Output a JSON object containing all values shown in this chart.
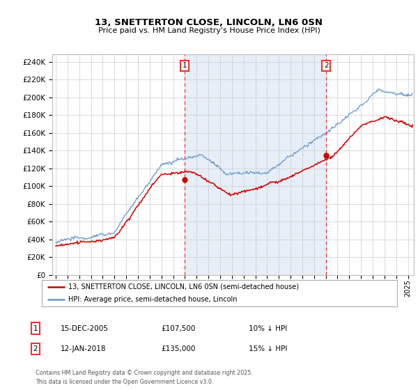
{
  "title1": "13, SNETTERTON CLOSE, LINCOLN, LN6 0SN",
  "title2": "Price paid vs. HM Land Registry's House Price Index (HPI)",
  "ylabel_ticks": [
    "£0",
    "£20K",
    "£40K",
    "£60K",
    "£80K",
    "£100K",
    "£120K",
    "£140K",
    "£160K",
    "£180K",
    "£200K",
    "£220K",
    "£240K"
  ],
  "ytick_values": [
    0,
    20000,
    40000,
    60000,
    80000,
    100000,
    120000,
    140000,
    160000,
    180000,
    200000,
    220000,
    240000
  ],
  "ylim": [
    0,
    248000
  ],
  "xlim_start": 1994.7,
  "xlim_end": 2025.5,
  "hpi_color": "#6699cc",
  "hpi_fill_color": "#dce8f5",
  "price_color": "#cc0000",
  "vline_color": "#ee3333",
  "vline1_x": 2005.96,
  "vline2_x": 2018.04,
  "marker1_x": 2005.96,
  "marker1_y": 107500,
  "marker2_x": 2018.04,
  "marker2_y": 135000,
  "annotation1": "1",
  "annotation2": "2",
  "legend_price_label": "13, SNETTERTON CLOSE, LINCOLN, LN6 0SN (semi-detached house)",
  "legend_hpi_label": "HPI: Average price, semi-detached house, Lincoln",
  "table_row1": [
    "1",
    "15-DEC-2005",
    "£107,500",
    "10% ↓ HPI"
  ],
  "table_row2": [
    "2",
    "12-JAN-2018",
    "£135,000",
    "15% ↓ HPI"
  ],
  "footnote": "Contains HM Land Registry data © Crown copyright and database right 2025.\nThis data is licensed under the Open Government Licence v3.0.",
  "background_color": "#ffffff",
  "grid_color": "#cccccc"
}
